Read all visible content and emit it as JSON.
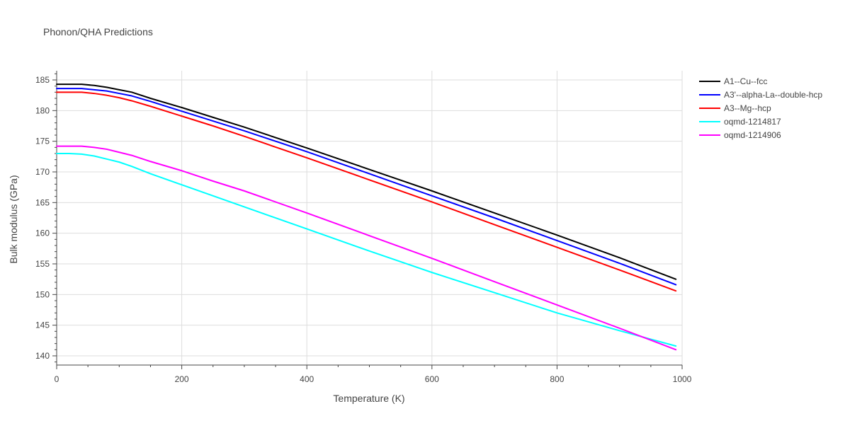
{
  "chart_data": {
    "type": "line",
    "title": "Phonon/QHA Predictions",
    "xlabel": "Temperature (K)",
    "ylabel": "Bulk modulus (GPa)",
    "xlim": [
      0,
      1000
    ],
    "ylim": [
      138.5,
      186.5
    ],
    "xticks": [
      0,
      200,
      400,
      600,
      800,
      1000
    ],
    "yticks": [
      140,
      145,
      150,
      155,
      160,
      165,
      170,
      175,
      180,
      185
    ],
    "grid": true,
    "legend_position": "top-right",
    "series": [
      {
        "name": "A1--Cu--fcc",
        "color": "#000000",
        "x": [
          0,
          20,
          40,
          60,
          80,
          100,
          120,
          150,
          200,
          250,
          300,
          400,
          500,
          600,
          700,
          800,
          900,
          990
        ],
        "y": [
          184.3,
          184.3,
          184.3,
          184.1,
          183.8,
          183.4,
          183.0,
          182.0,
          180.5,
          178.9,
          177.3,
          173.9,
          170.4,
          166.9,
          163.3,
          159.7,
          156.0,
          152.5
        ]
      },
      {
        "name": "A3'--alpha-La--double-hcp",
        "color": "#0000ff",
        "x": [
          0,
          20,
          40,
          60,
          80,
          100,
          120,
          150,
          200,
          250,
          300,
          400,
          500,
          600,
          700,
          800,
          900,
          990
        ],
        "y": [
          183.6,
          183.6,
          183.6,
          183.4,
          183.2,
          182.8,
          182.4,
          181.5,
          179.9,
          178.3,
          176.7,
          173.3,
          169.7,
          166.1,
          162.5,
          158.8,
          155.1,
          151.6
        ]
      },
      {
        "name": "A3--Mg--hcp",
        "color": "#ff0000",
        "x": [
          0,
          20,
          40,
          60,
          80,
          100,
          120,
          150,
          200,
          250,
          300,
          400,
          500,
          600,
          700,
          800,
          900,
          990
        ],
        "y": [
          183.0,
          183.0,
          183.0,
          182.8,
          182.5,
          182.1,
          181.6,
          180.7,
          179.1,
          177.5,
          175.8,
          172.3,
          168.7,
          165.1,
          161.4,
          157.7,
          154.0,
          150.6
        ]
      },
      {
        "name": "oqmd-1214817",
        "color": "#00ffff",
        "x": [
          0,
          20,
          40,
          60,
          80,
          100,
          120,
          150,
          200,
          250,
          300,
          400,
          500,
          600,
          700,
          800,
          900,
          990
        ],
        "y": [
          173.0,
          173.0,
          172.9,
          172.6,
          172.1,
          171.6,
          170.9,
          169.7,
          167.9,
          166.1,
          164.3,
          160.7,
          157.1,
          153.6,
          150.3,
          147.0,
          144.1,
          141.6
        ]
      },
      {
        "name": "oqmd-1214906",
        "color": "#ff00ff",
        "x": [
          0,
          20,
          40,
          60,
          80,
          100,
          120,
          150,
          200,
          250,
          300,
          400,
          500,
          600,
          700,
          800,
          900,
          990
        ],
        "y": [
          174.2,
          174.2,
          174.2,
          174.0,
          173.7,
          173.2,
          172.7,
          171.7,
          170.2,
          168.5,
          166.9,
          163.3,
          159.6,
          155.9,
          152.1,
          148.3,
          144.5,
          141.0
        ]
      }
    ]
  }
}
